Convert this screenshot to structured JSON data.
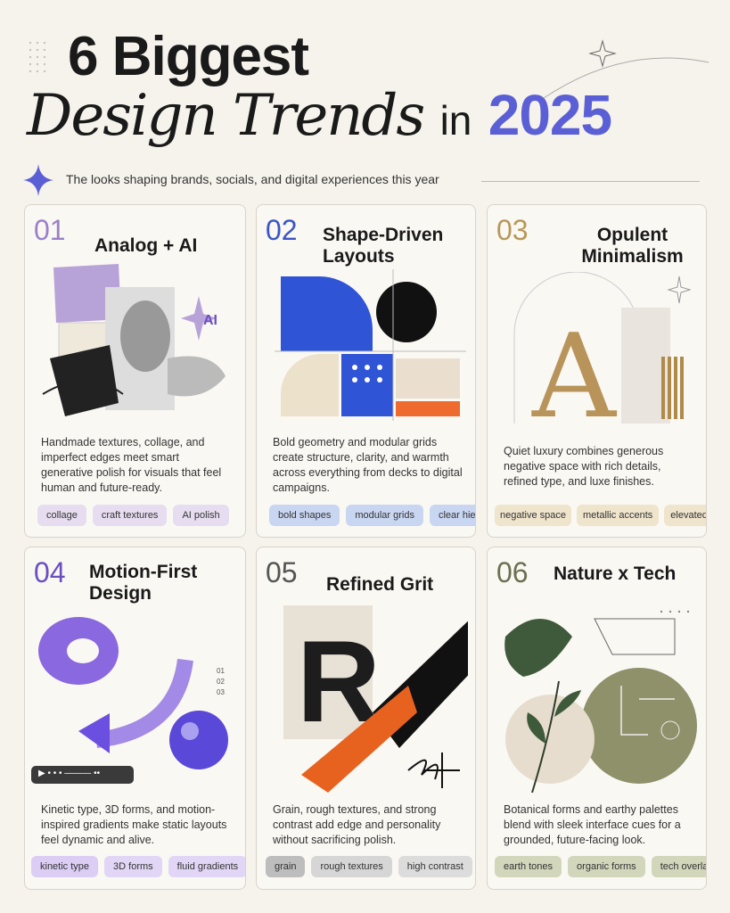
{
  "header": {
    "title_line1": "6 Biggest",
    "title_line2": "Design Trends",
    "title_in": "in",
    "title_year": "2025",
    "subtitle": "The looks shaping brands, socials, and digital experiences this year"
  },
  "colors": {
    "accent": "#5b5fd6",
    "background": "#f6f3ec"
  },
  "cards": [
    {
      "number": "01",
      "title": "Analog + AI",
      "badge": "AI",
      "description": "Handmade textures, collage, and imperfect edges meet smart generative polish for visuals that feel human and future-ready.",
      "tags": [
        "collage",
        "craft textures",
        "AI polish"
      ],
      "number_color": "#9a80c9",
      "tag_color": "#e6ddf0"
    },
    {
      "number": "02",
      "title": "Shape-Driven Layouts",
      "description": "Bold geometry and modular grids create structure, clarity, and warmth across everything from decks to digital campaigns.",
      "tags": [
        "bold shapes",
        "modular grids",
        "clear hierarchy"
      ],
      "number_color": "#3b55c6",
      "tag_color": "#c9d6f2"
    },
    {
      "number": "03",
      "title": "Opulent Minimalism",
      "letter": "A",
      "description": "Quiet luxury combines generous negative space with rich details, refined type, and luxe finishes.",
      "tags": [
        "negative space",
        "metallic accents",
        "elevated type"
      ],
      "number_color": "#b89858",
      "tag_color": "#efe4cc"
    },
    {
      "number": "04",
      "title": "Motion-First Design",
      "steps": [
        "01",
        "02",
        "03"
      ],
      "description": "Kinetic type, 3D forms, and motion-inspired gradients make static layouts feel dynamic and alive.",
      "tags": [
        "kinetic type",
        "3D forms",
        "fluid gradients"
      ],
      "number_color": "#6a4fc0",
      "tag_color": "#e2d6f6"
    },
    {
      "number": "05",
      "title": "Refined Grit",
      "letter": "R",
      "description": "Grain, rough textures, and strong contrast add edge and personality without sacrificing polish.",
      "tags": [
        "grain",
        "rough textures",
        "high contrast"
      ],
      "number_color": "#555555",
      "tag_color": "#dcdcdc"
    },
    {
      "number": "06",
      "title": "Nature x Tech",
      "description": "Botanical forms and earthy palettes blend with sleek interface cues for a grounded, future-facing look.",
      "tags": [
        "earth tones",
        "organic forms",
        "tech overlays"
      ],
      "number_color": "#6b7050",
      "tag_color": "#d9dcc6"
    }
  ]
}
